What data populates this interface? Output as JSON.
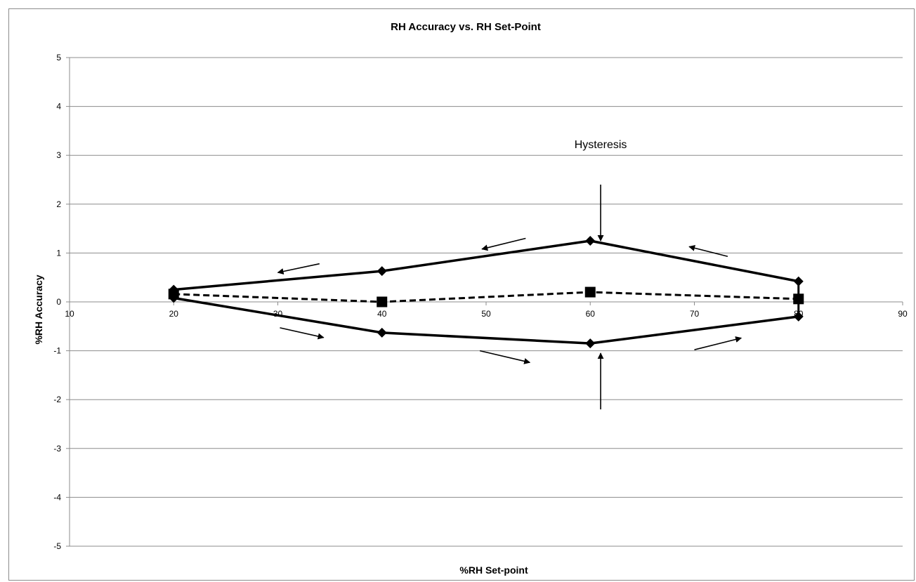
{
  "chart_data": {
    "type": "line",
    "title": "RH Accuracy vs. RH Set-Point",
    "xlabel": "%RH Set-point",
    "ylabel": "%RH Accuracy",
    "xlim": [
      10,
      90
    ],
    "ylim": [
      -5,
      5
    ],
    "xticks": [
      10,
      20,
      30,
      40,
      50,
      60,
      70,
      80,
      90
    ],
    "yticks": [
      -5,
      -4,
      -3,
      -2,
      -1,
      0,
      1,
      2,
      3,
      4,
      5
    ],
    "grid": {
      "horizontal": true,
      "vertical": false
    },
    "legend": "none",
    "series": [
      {
        "x": [
          20,
          40,
          60,
          80
        ],
        "y": [
          0.25,
          0.63,
          1.25,
          0.42
        ],
        "marker": "diamond",
        "style": "solid"
      },
      {
        "x": [
          20,
          40,
          60,
          80
        ],
        "y": [
          0.08,
          -0.63,
          -0.85,
          -0.3
        ],
        "marker": "diamond",
        "style": "solid"
      },
      {
        "x": [
          20,
          40,
          60,
          80
        ],
        "y": [
          0.16,
          0.0,
          0.2,
          0.06
        ],
        "marker": "square",
        "style": "dashed"
      }
    ],
    "connector": {
      "x": 80,
      "y_from": 0.42,
      "y_to": -0.3
    },
    "annotations": [
      {
        "text": "Hysteresis",
        "x": 61.0,
        "y": 3.15
      }
    ],
    "arrows": [
      {
        "from": [
          61.0,
          2.4
        ],
        "to": [
          61.0,
          1.25
        ]
      },
      {
        "from": [
          61.0,
          -2.2
        ],
        "to": [
          61.0,
          -1.05
        ]
      },
      {
        "from": [
          34.0,
          0.78
        ],
        "to": [
          30.0,
          0.6
        ]
      },
      {
        "from": [
          53.8,
          1.3
        ],
        "to": [
          49.6,
          1.08
        ]
      },
      {
        "from": [
          73.2,
          0.93
        ],
        "to": [
          69.5,
          1.13
        ]
      },
      {
        "from": [
          30.2,
          -0.53
        ],
        "to": [
          34.4,
          -0.73
        ]
      },
      {
        "from": [
          49.4,
          -1.0
        ],
        "to": [
          54.2,
          -1.24
        ]
      },
      {
        "from": [
          70.0,
          -0.98
        ],
        "to": [
          74.5,
          -0.74
        ]
      }
    ],
    "colors": {
      "series": "#000000",
      "grid": "#8c8c8c",
      "axis": "#8c8c8c"
    }
  }
}
